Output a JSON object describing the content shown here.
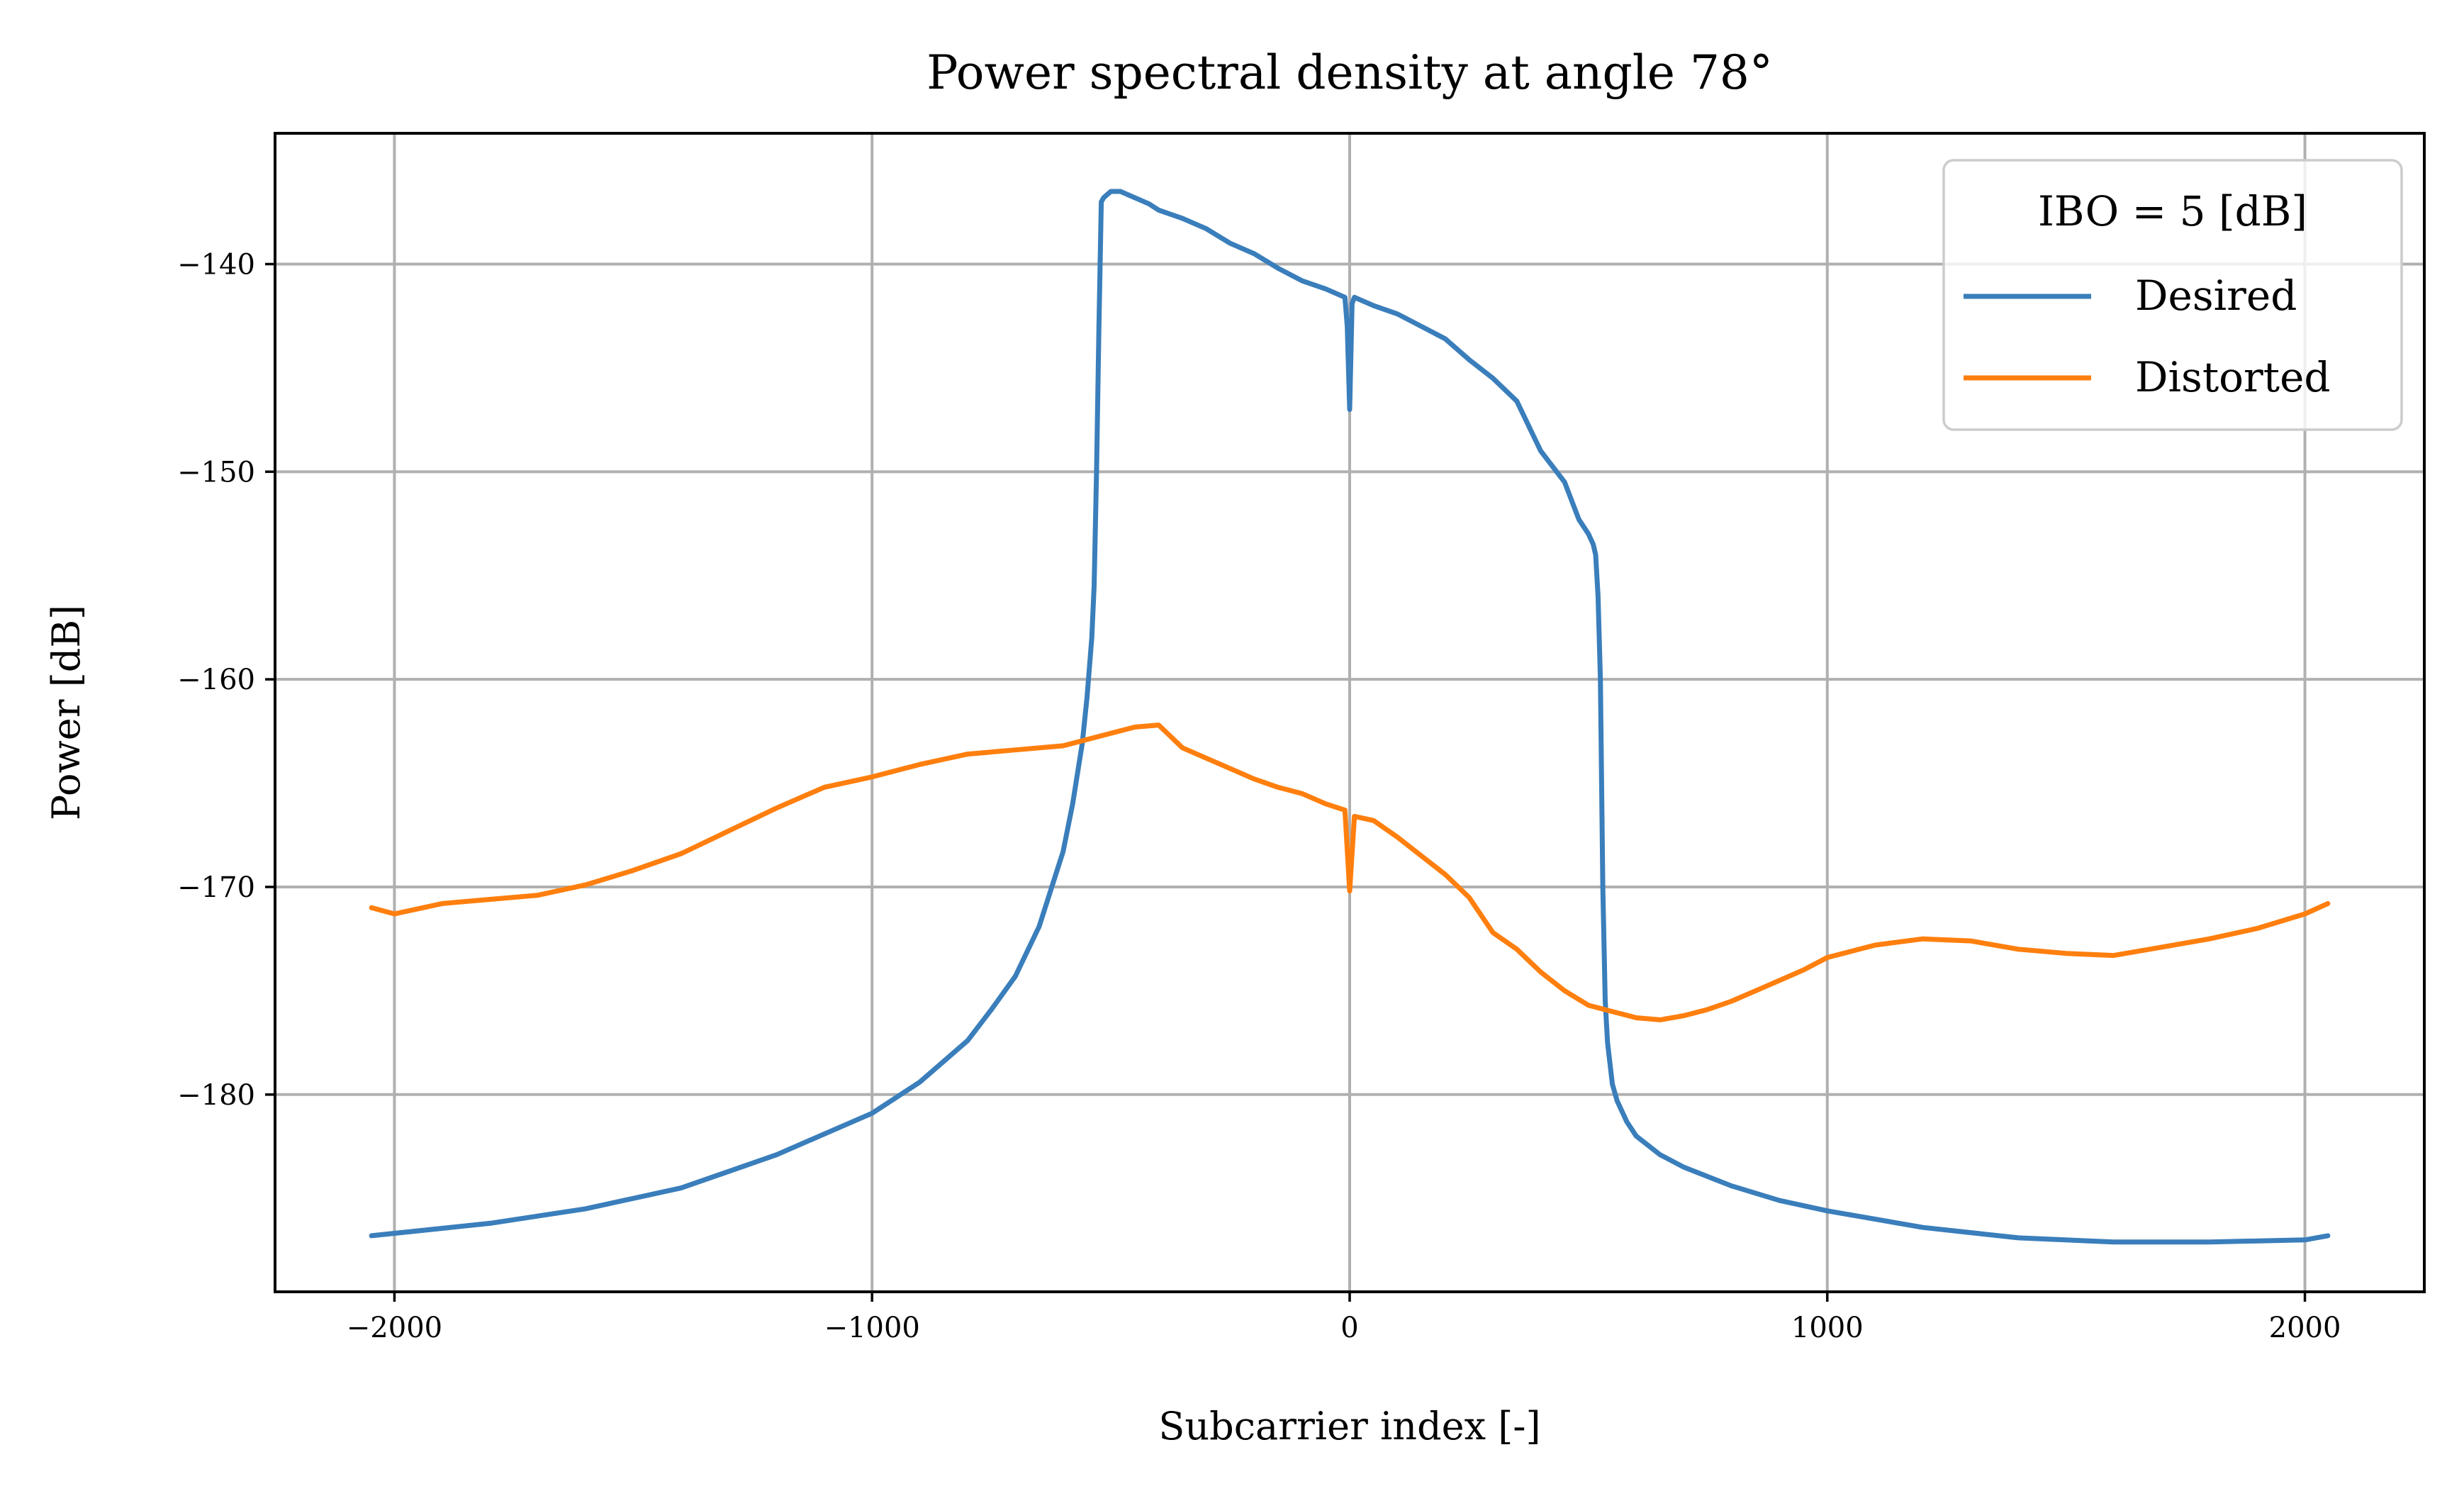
{
  "chart_data": {
    "type": "line",
    "title": "Power spectral density at angle 78°",
    "xlabel": "Subcarrier index [-]",
    "ylabel": "Power [dB]",
    "xlim": [
      -2250,
      2250
    ],
    "ylim": [
      -189.5,
      -133.7
    ],
    "xticks": [
      -2000,
      -1000,
      0,
      1000,
      2000
    ],
    "yticks": [
      -140,
      -150,
      -160,
      -170,
      -180
    ],
    "xtick_labels": [
      "−2000",
      "−1000",
      "0",
      "1000",
      "2000"
    ],
    "ytick_labels": [
      "−140",
      "−150",
      "−160",
      "−170",
      "−180"
    ],
    "grid": true,
    "legend": {
      "title": "IBO = 5 [dB]",
      "placement": "upper-right"
    },
    "series": [
      {
        "name": "Desired",
        "color": "#3a7ebb",
        "x": [
          -2048,
          -1800,
          -1600,
          -1400,
          -1200,
          -1100,
          -1000,
          -900,
          -800,
          -750,
          -700,
          -650,
          -600,
          -580,
          -560,
          -550,
          -540,
          -535,
          -530,
          -525,
          -520,
          -515,
          -510,
          -500,
          -480,
          -450,
          -420,
          -400,
          -350,
          -300,
          -250,
          -200,
          -150,
          -100,
          -50,
          -10,
          -5,
          0,
          5,
          10,
          50,
          100,
          150,
          200,
          250,
          300,
          350,
          400,
          450,
          480,
          500,
          510,
          515,
          520,
          525,
          530,
          535,
          540,
          550,
          560,
          580,
          600,
          650,
          700,
          800,
          900,
          1000,
          1200,
          1400,
          1600,
          1800,
          2000,
          2048
        ],
        "y": [
          -186.8,
          -186.2,
          -185.5,
          -184.5,
          -182.9,
          -181.9,
          -180.9,
          -179.4,
          -177.4,
          -175.9,
          -174.3,
          -171.9,
          -168.3,
          -166.0,
          -163.1,
          -160.9,
          -158.0,
          -155.5,
          -150.0,
          -143.0,
          -137.0,
          -136.8,
          -136.7,
          -136.5,
          -136.5,
          -136.8,
          -137.1,
          -137.4,
          -137.8,
          -138.3,
          -139.0,
          -139.5,
          -140.2,
          -140.8,
          -141.2,
          -141.6,
          -143.0,
          -147.0,
          -141.9,
          -141.6,
          -142.0,
          -142.4,
          -143.0,
          -143.6,
          -144.6,
          -145.5,
          -146.6,
          -149.0,
          -150.5,
          -152.3,
          -153.0,
          -153.5,
          -154.0,
          -156.0,
          -160.0,
          -170.0,
          -175.5,
          -177.5,
          -179.5,
          -180.3,
          -181.3,
          -182.0,
          -182.9,
          -183.5,
          -184.4,
          -185.1,
          -185.6,
          -186.4,
          -186.9,
          -187.1,
          -187.1,
          -187.0,
          -186.8
        ]
      },
      {
        "name": "Distorted",
        "color": "#ff7f0e",
        "x": [
          -2048,
          -2000,
          -1900,
          -1800,
          -1700,
          -1600,
          -1500,
          -1400,
          -1300,
          -1200,
          -1100,
          -1000,
          -900,
          -800,
          -700,
          -600,
          -500,
          -450,
          -400,
          -350,
          -300,
          -250,
          -200,
          -150,
          -100,
          -50,
          -10,
          0,
          10,
          50,
          100,
          150,
          200,
          250,
          300,
          350,
          400,
          450,
          500,
          550,
          600,
          650,
          700,
          750,
          800,
          850,
          900,
          950,
          1000,
          1100,
          1200,
          1300,
          1400,
          1500,
          1600,
          1700,
          1800,
          1900,
          2000,
          2048
        ],
        "y": [
          -171.0,
          -171.3,
          -170.8,
          -170.6,
          -170.4,
          -169.9,
          -169.2,
          -168.4,
          -167.3,
          -166.2,
          -165.2,
          -164.7,
          -164.1,
          -163.6,
          -163.4,
          -163.2,
          -162.6,
          -162.3,
          -162.2,
          -163.3,
          -163.8,
          -164.3,
          -164.8,
          -165.2,
          -165.5,
          -166.0,
          -166.3,
          -170.2,
          -166.6,
          -166.8,
          -167.6,
          -168.5,
          -169.4,
          -170.5,
          -172.2,
          -173.0,
          -174.1,
          -175.0,
          -175.7,
          -176.0,
          -176.3,
          -176.4,
          -176.2,
          -175.9,
          -175.5,
          -175.0,
          -174.5,
          -174.0,
          -173.4,
          -172.8,
          -172.5,
          -172.6,
          -173.0,
          -173.2,
          -173.3,
          -172.9,
          -172.5,
          -172.0,
          -171.3,
          -170.8
        ]
      }
    ]
  }
}
